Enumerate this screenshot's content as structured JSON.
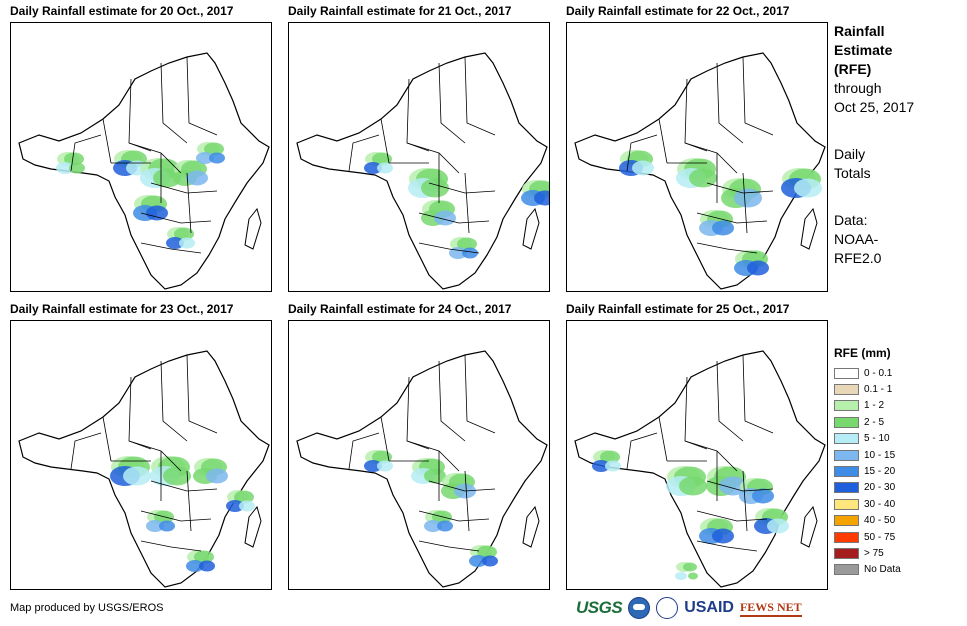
{
  "panels": [
    {
      "title": "Daily Rainfall estimate for 20 Oct., 2017"
    },
    {
      "title": "Daily Rainfall estimate for 21 Oct., 2017"
    },
    {
      "title": "Daily Rainfall estimate for 22 Oct., 2017"
    },
    {
      "title": "Daily Rainfall estimate for 23 Oct., 2017"
    },
    {
      "title": "Daily Rainfall estimate for 24 Oct., 2017"
    },
    {
      "title": "Daily Rainfall estimate for 25 Oct., 2017"
    }
  ],
  "sidebar": {
    "title_line1": "Rainfall",
    "title_line2": "Estimate",
    "title_line3": "(RFE)",
    "through_line1": "through",
    "through_line2": "Oct 25, 2017",
    "totals_line1": "Daily",
    "totals_line2": "Totals",
    "data_line1": "Data:",
    "data_line2": "NOAA-",
    "data_line3": "RFE2.0"
  },
  "legend": {
    "title": "RFE (mm)",
    "items": [
      {
        "label": "0 - 0.1",
        "color": "#ffffff"
      },
      {
        "label": "0.1 - 1",
        "color": "#e9d8b8"
      },
      {
        "label": "1 - 2",
        "color": "#b7efad"
      },
      {
        "label": "2 - 5",
        "color": "#77d86e"
      },
      {
        "label": "5 - 10",
        "color": "#b5ecf5"
      },
      {
        "label": "10 - 15",
        "color": "#7db7ef"
      },
      {
        "label": "15 - 20",
        "color": "#3f8ce6"
      },
      {
        "label": "20 - 30",
        "color": "#1f5fdc"
      },
      {
        "label": "30 - 40",
        "color": "#fde77d"
      },
      {
        "label": "40 - 50",
        "color": "#f5a300"
      },
      {
        "label": "50 - 75",
        "color": "#ff3c00"
      },
      {
        "label": "> 75",
        "color": "#a51d1d"
      },
      {
        "label": "No Data",
        "color": "#9a9a9a"
      }
    ]
  },
  "credit": "Map produced by USGS/EROS",
  "logos": {
    "usgs": "USGS",
    "usaid": "USAID",
    "fews": "FEWS NET"
  }
}
